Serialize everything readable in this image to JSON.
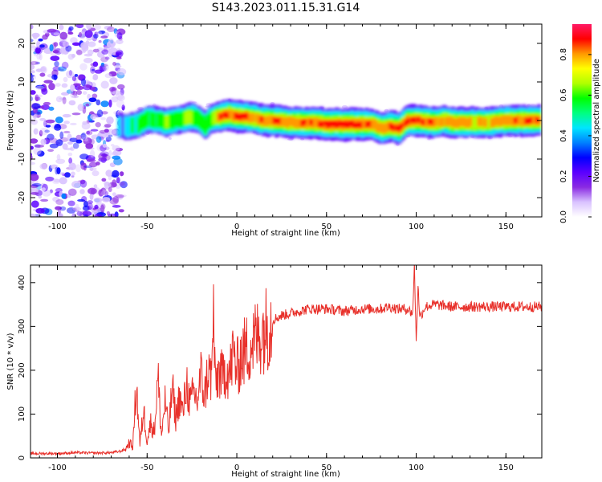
{
  "figure": {
    "title": "S143.2023.011.15.31.G14"
  },
  "colors": {
    "snr_line": "#e8302a",
    "colormap": [
      "#ffffff",
      "#d9c2ff",
      "#8a2be2",
      "#5b00ff",
      "#0000ff",
      "#0080ff",
      "#00e5ff",
      "#00ff80",
      "#00ff00",
      "#b0ff00",
      "#ffff00",
      "#ff9900",
      "#ff0000",
      "#ff1a66"
    ]
  },
  "chart_data": [
    {
      "type": "heatmap",
      "xlabel": "Height of straight line (km)",
      "ylabel": "Frequency (Hz)",
      "xlim": [
        -115,
        170
      ],
      "ylim": [
        -25,
        25
      ],
      "x_ticks": [
        -100,
        -50,
        0,
        50,
        100,
        150
      ],
      "y_ticks": [
        -20,
        -10,
        0,
        10,
        20
      ],
      "colorbar": {
        "label": "Normalized spectral amplitude",
        "range": [
          0,
          0.95
        ],
        "ticks": [
          0.0,
          0.2,
          0.4,
          0.6,
          0.8
        ]
      },
      "noise_region_x": [
        -115,
        -65
      ],
      "ridge": {
        "x": [
          -66,
          -60,
          -55,
          -50,
          -45,
          -40,
          -35,
          -30,
          -25,
          -21,
          -18,
          -15,
          -10,
          -5,
          0,
          5,
          10,
          15,
          20,
          30,
          40,
          50,
          60,
          70,
          75,
          80,
          85,
          90,
          95,
          100,
          110,
          115,
          120,
          130,
          140,
          150,
          160,
          168
        ],
        "frequency": [
          -1.5,
          -1.5,
          -1,
          0.5,
          0,
          -0.5,
          0,
          0.5,
          1,
          0,
          -1.5,
          0.5,
          1,
          1.5,
          1,
          1,
          0.5,
          0,
          0,
          -0.5,
          -0.5,
          -1,
          -1,
          -1,
          -1,
          -2,
          -1.5,
          -2,
          0,
          0,
          -0.5,
          0,
          -0.5,
          -0.5,
          -0.5,
          0,
          0,
          0
        ],
        "amplitude": [
          0.35,
          0.45,
          0.5,
          0.55,
          0.5,
          0.6,
          0.55,
          0.6,
          0.65,
          0.55,
          0.5,
          0.6,
          0.85,
          0.85,
          0.9,
          0.85,
          0.8,
          0.85,
          0.85,
          0.8,
          0.85,
          0.9,
          0.95,
          0.9,
          0.8,
          0.8,
          0.85,
          0.85,
          0.85,
          0.85,
          0.8,
          0.75,
          0.8,
          0.75,
          0.75,
          0.8,
          0.85,
          0.8
        ]
      }
    },
    {
      "type": "line",
      "xlabel": "Height of straight line (km)",
      "ylabel": "SNR (10 * v/v)",
      "xlim": [
        -115,
        170
      ],
      "ylim": [
        0,
        440
      ],
      "x_ticks": [
        -100,
        -50,
        0,
        50,
        100,
        150
      ],
      "y_ticks": [
        0,
        100,
        200,
        300,
        400
      ],
      "series": [
        {
          "x": [
            -115,
            -100,
            -90,
            -80,
            -70,
            -65,
            -62,
            -60,
            -58,
            -56,
            -54,
            -52,
            -50,
            -48,
            -46,
            -44,
            -42,
            -40,
            -38,
            -36,
            -34,
            -32,
            -30,
            -28,
            -26,
            -24,
            -22,
            -20,
            -18,
            -16,
            -14,
            -13,
            -12,
            -10,
            -8,
            -6,
            -4,
            -2,
            0,
            2,
            4,
            6,
            8,
            10,
            12,
            14,
            16,
            18,
            20,
            25,
            30,
            35,
            40,
            50,
            60,
            70,
            80,
            85,
            90,
            95,
            98,
            99,
            100,
            101,
            102,
            105,
            110,
            120,
            130,
            140,
            150,
            160,
            170
          ],
          "y": [
            10,
            10,
            12,
            11,
            12,
            15,
            20,
            35,
            25,
            170,
            30,
            110,
            40,
            80,
            60,
            185,
            50,
            130,
            60,
            160,
            90,
            140,
            100,
            175,
            120,
            150,
            130,
            190,
            140,
            200,
            180,
            340,
            160,
            200,
            180,
            210,
            190,
            240,
            200,
            230,
            240,
            250,
            260,
            270,
            275,
            290,
            295,
            305,
            315,
            325,
            330,
            335,
            340,
            340,
            335,
            340,
            340,
            345,
            340,
            340,
            330,
            440,
            265,
            395,
            320,
            345,
            350,
            345,
            345,
            345,
            345,
            345,
            345
          ]
        }
      ]
    }
  ]
}
